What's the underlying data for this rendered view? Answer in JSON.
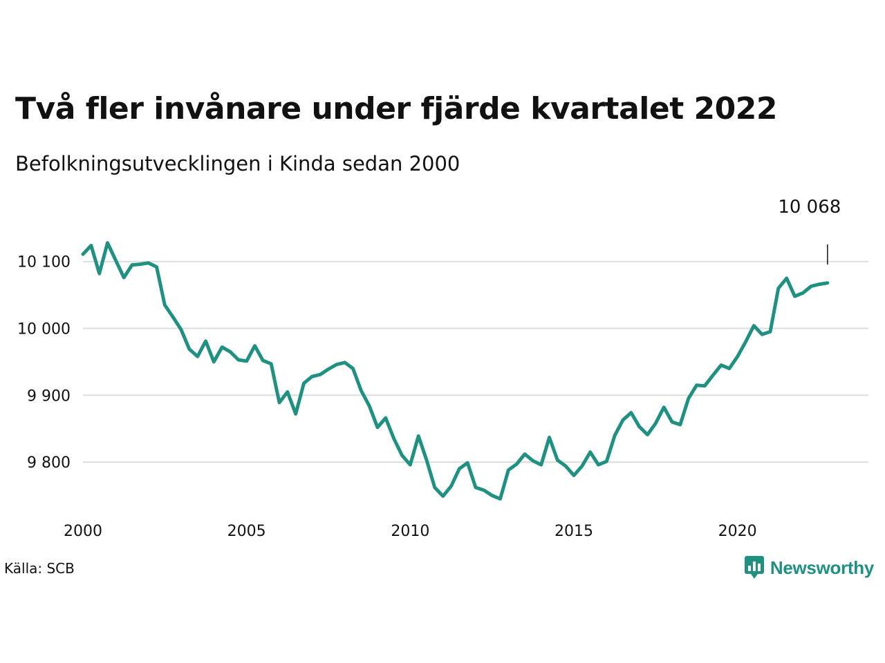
{
  "title": "Två fler invånare under fjärde kvartalet 2022",
  "subtitle": "Befolkningsutvecklingen i Kinda sedan 2000",
  "source": "Källa: SCB",
  "brand": {
    "name": "Newsworthy",
    "icon": "newsworthy-chart-bubble-icon",
    "color": "#1e9181"
  },
  "colors": {
    "line": "#1e9181",
    "grid": "#dcdcdc"
  },
  "chart_data": {
    "type": "line",
    "x_start": 2000.0,
    "x_step": 0.25,
    "values": [
      10111,
      10124,
      10082,
      10128,
      10102,
      10076,
      10095,
      10096,
      10098,
      10092,
      10035,
      10017,
      9998,
      9969,
      9958,
      9981,
      9950,
      9972,
      9965,
      9953,
      9951,
      9974,
      9952,
      9947,
      9889,
      9905,
      9872,
      9918,
      9928,
      9931,
      9939,
      9946,
      9949,
      9940,
      9907,
      9884,
      9852,
      9866,
      9835,
      9810,
      9796,
      9839,
      9803,
      9762,
      9749,
      9764,
      9790,
      9799,
      9762,
      9758,
      9750,
      9745,
      9788,
      9797,
      9812,
      9802,
      9796,
      9837,
      9803,
      9794,
      9780,
      9794,
      9815,
      9796,
      9801,
      9840,
      9863,
      9874,
      9853,
      9841,
      9858,
      9882,
      9860,
      9856,
      9895,
      9915,
      9914,
      9930,
      9945,
      9940,
      9958,
      9980,
      10004,
      9991,
      9995,
      10060,
      10075,
      10048,
      10053,
      10063,
      10066,
      10068
    ],
    "x_ticks": [
      2000,
      2005,
      2010,
      2015,
      2020
    ],
    "y_ticks": [
      9800,
      9900,
      10000,
      10100
    ],
    "y_tick_labels": [
      "9 800",
      "9 900",
      "10 000",
      "10 100"
    ],
    "xlim": [
      2000,
      2024.0
    ],
    "ylim": [
      9735,
      10140
    ],
    "grid": "horizontal",
    "end_label": "10 068"
  }
}
